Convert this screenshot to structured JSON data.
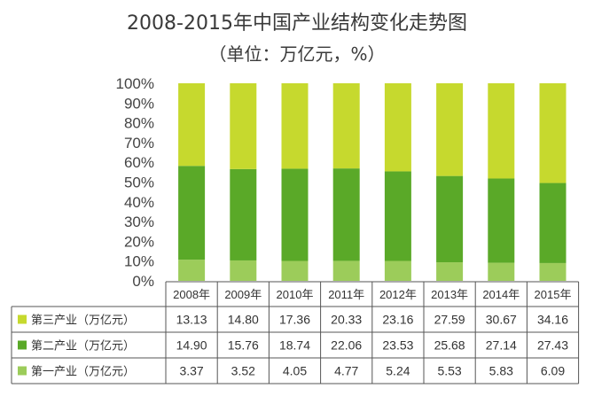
{
  "chart_data": {
    "type": "bar",
    "stacked": "percent",
    "title": "2008-2015年中国产业结构变化走势图",
    "subtitle": "（单位：万亿元，%）",
    "categories": [
      "2008年",
      "2009年",
      "2010年",
      "2011年",
      "2012年",
      "2013年",
      "2014年",
      "2015年"
    ],
    "yticks": [
      "0%",
      "10%",
      "20%",
      "30%",
      "40%",
      "50%",
      "60%",
      "70%",
      "80%",
      "90%",
      "100%"
    ],
    "ylim": [
      0,
      100
    ],
    "series": [
      {
        "name": "第一产业（万亿元）",
        "color": "#9ccc5a",
        "values": [
          3.37,
          3.52,
          4.05,
          4.77,
          5.24,
          5.53,
          5.83,
          6.09
        ]
      },
      {
        "name": "第二产业（万亿元）",
        "color": "#5aa928",
        "values": [
          14.9,
          15.76,
          18.74,
          22.06,
          23.53,
          25.68,
          27.14,
          27.43
        ]
      },
      {
        "name": "第三产业（万亿元）",
        "color": "#c6d92e",
        "values": [
          13.13,
          14.8,
          17.36,
          20.33,
          23.16,
          27.59,
          30.67,
          34.16
        ]
      }
    ],
    "table_rows": [
      {
        "series": 2,
        "label": "第三产业（万亿元）",
        "cells": [
          "13.13",
          "14.80",
          "17.36",
          "20.33",
          "23.16",
          "27.59",
          "30.67",
          "34.16"
        ]
      },
      {
        "series": 1,
        "label": "第二产业（万亿元）",
        "cells": [
          "14.90",
          "15.76",
          "18.74",
          "22.06",
          "23.53",
          "25.68",
          "27.14",
          "27.43"
        ]
      },
      {
        "series": 0,
        "label": "第一产业（万亿元）",
        "cells": [
          "3.37",
          "3.52",
          "4.05",
          "4.77",
          "5.24",
          "5.53",
          "5.83",
          "6.09"
        ]
      }
    ]
  }
}
